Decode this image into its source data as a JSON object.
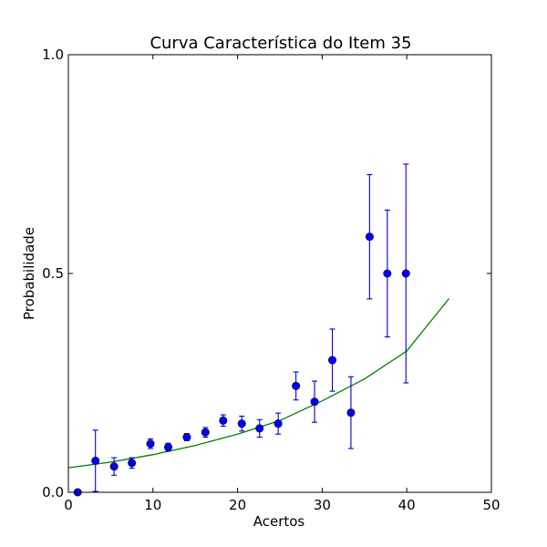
{
  "chart_data": {
    "type": "scatter",
    "title": "Curva Característica do Item 35",
    "xlabel": "Acertos",
    "ylabel": "Probabilidade",
    "xlim": [
      0,
      50
    ],
    "ylim": [
      0.0,
      1.0
    ],
    "xticks": [
      0,
      10,
      20,
      30,
      40,
      50
    ],
    "xtick_labels": [
      "0",
      "10",
      "20",
      "30",
      "40",
      "50"
    ],
    "yticks": [
      0.0,
      0.5,
      1.0
    ],
    "ytick_labels": [
      "0.0",
      "0.5",
      "1.0"
    ],
    "grid": false,
    "legend": "none",
    "points": [
      {
        "x": 1.1,
        "y": 0.0,
        "err": 0.0
      },
      {
        "x": 3.2,
        "y": 0.072,
        "err": 0.07
      },
      {
        "x": 5.4,
        "y": 0.059,
        "err": 0.02
      },
      {
        "x": 7.5,
        "y": 0.067,
        "err": 0.012
      },
      {
        "x": 9.7,
        "y": 0.111,
        "err": 0.011
      },
      {
        "x": 11.8,
        "y": 0.103,
        "err": 0.009
      },
      {
        "x": 14.0,
        "y": 0.126,
        "err": 0.008
      },
      {
        "x": 16.2,
        "y": 0.137,
        "err": 0.011
      },
      {
        "x": 18.3,
        "y": 0.164,
        "err": 0.013
      },
      {
        "x": 20.5,
        "y": 0.157,
        "err": 0.017
      },
      {
        "x": 22.6,
        "y": 0.146,
        "err": 0.02
      },
      {
        "x": 24.8,
        "y": 0.157,
        "err": 0.024
      },
      {
        "x": 26.9,
        "y": 0.243,
        "err": 0.032
      },
      {
        "x": 29.1,
        "y": 0.207,
        "err": 0.047
      },
      {
        "x": 31.2,
        "y": 0.302,
        "err": 0.071
      },
      {
        "x": 33.4,
        "y": 0.182,
        "err": 0.082
      },
      {
        "x": 35.6,
        "y": 0.584,
        "err": 0.142
      },
      {
        "x": 37.7,
        "y": 0.5,
        "err": 0.145
      },
      {
        "x": 39.9,
        "y": 0.5,
        "err": 0.25
      }
    ],
    "curve": {
      "x": [
        0,
        5,
        10,
        15,
        20,
        25,
        30,
        35,
        40,
        45
      ],
      "y": [
        0.056,
        0.069,
        0.086,
        0.107,
        0.133,
        0.164,
        0.209,
        0.259,
        0.323,
        0.443
      ]
    },
    "colors": {
      "points": "#0000ff",
      "errorbars": "#0000cc",
      "curve": "#008000",
      "axes": "#000000"
    }
  }
}
